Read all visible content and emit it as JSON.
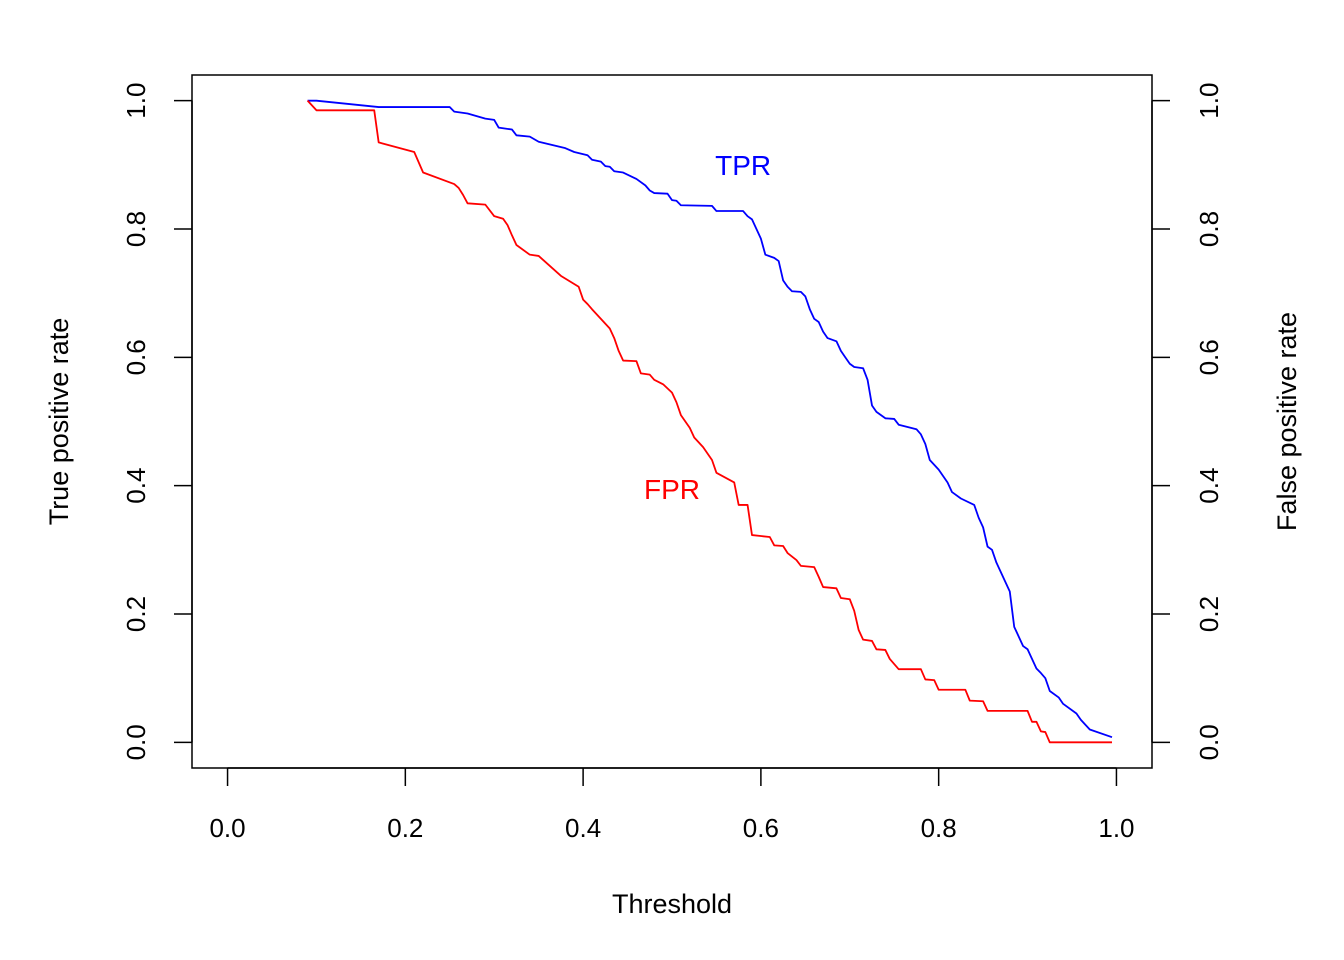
{
  "chart_data": {
    "type": "line",
    "xlabel": "Threshold",
    "ylabel": "True positive rate",
    "ylabel_right": "False positive rate",
    "xlim": [
      -0.04,
      1.04
    ],
    "ylim": [
      -0.04,
      1.04
    ],
    "x_ticks": [
      0.0,
      0.2,
      0.4,
      0.6,
      0.8,
      1.0
    ],
    "x_tick_labels": [
      "0.0",
      "0.2",
      "0.4",
      "0.6",
      "0.8",
      "1.0"
    ],
    "y_ticks": [
      0.0,
      0.2,
      0.4,
      0.6,
      0.8,
      1.0
    ],
    "y_tick_labels": [
      "0.0",
      "0.2",
      "0.4",
      "0.6",
      "0.8",
      "1.0"
    ],
    "grid": false,
    "legend": "none",
    "series": [
      {
        "name": "TPR",
        "color": "#0000ff",
        "label_at": [
          0.58,
          0.9
        ],
        "points": [
          [
            0.09,
            1.0
          ],
          [
            0.1,
            1.0
          ],
          [
            0.17,
            0.99
          ],
          [
            0.25,
            0.99
          ],
          [
            0.255,
            0.983
          ],
          [
            0.27,
            0.98
          ],
          [
            0.29,
            0.972
          ],
          [
            0.3,
            0.97
          ],
          [
            0.305,
            0.958
          ],
          [
            0.32,
            0.955
          ],
          [
            0.325,
            0.946
          ],
          [
            0.34,
            0.944
          ],
          [
            0.35,
            0.936
          ],
          [
            0.38,
            0.926
          ],
          [
            0.39,
            0.92
          ],
          [
            0.405,
            0.915
          ],
          [
            0.41,
            0.908
          ],
          [
            0.42,
            0.905
          ],
          [
            0.425,
            0.898
          ],
          [
            0.43,
            0.897
          ],
          [
            0.435,
            0.89
          ],
          [
            0.445,
            0.888
          ],
          [
            0.46,
            0.878
          ],
          [
            0.47,
            0.868
          ],
          [
            0.475,
            0.86
          ],
          [
            0.48,
            0.856
          ],
          [
            0.495,
            0.855
          ],
          [
            0.5,
            0.845
          ],
          [
            0.505,
            0.844
          ],
          [
            0.51,
            0.837
          ],
          [
            0.545,
            0.836
          ],
          [
            0.55,
            0.828
          ],
          [
            0.58,
            0.828
          ],
          [
            0.585,
            0.82
          ],
          [
            0.59,
            0.815
          ],
          [
            0.595,
            0.8
          ],
          [
            0.6,
            0.785
          ],
          [
            0.605,
            0.76
          ],
          [
            0.615,
            0.755
          ],
          [
            0.62,
            0.75
          ],
          [
            0.625,
            0.72
          ],
          [
            0.63,
            0.71
          ],
          [
            0.635,
            0.703
          ],
          [
            0.645,
            0.702
          ],
          [
            0.65,
            0.695
          ],
          [
            0.655,
            0.675
          ],
          [
            0.66,
            0.66
          ],
          [
            0.665,
            0.655
          ],
          [
            0.67,
            0.64
          ],
          [
            0.675,
            0.63
          ],
          [
            0.685,
            0.625
          ],
          [
            0.69,
            0.61
          ],
          [
            0.695,
            0.6
          ],
          [
            0.7,
            0.59
          ],
          [
            0.705,
            0.585
          ],
          [
            0.715,
            0.583
          ],
          [
            0.72,
            0.565
          ],
          [
            0.725,
            0.525
          ],
          [
            0.73,
            0.515
          ],
          [
            0.74,
            0.505
          ],
          [
            0.75,
            0.504
          ],
          [
            0.755,
            0.495
          ],
          [
            0.775,
            0.488
          ],
          [
            0.78,
            0.48
          ],
          [
            0.785,
            0.465
          ],
          [
            0.79,
            0.44
          ],
          [
            0.8,
            0.425
          ],
          [
            0.81,
            0.405
          ],
          [
            0.815,
            0.39
          ],
          [
            0.825,
            0.38
          ],
          [
            0.84,
            0.37
          ],
          [
            0.845,
            0.35
          ],
          [
            0.85,
            0.335
          ],
          [
            0.855,
            0.305
          ],
          [
            0.86,
            0.3
          ],
          [
            0.865,
            0.28
          ],
          [
            0.87,
            0.265
          ],
          [
            0.875,
            0.25
          ],
          [
            0.88,
            0.235
          ],
          [
            0.885,
            0.18
          ],
          [
            0.89,
            0.165
          ],
          [
            0.895,
            0.15
          ],
          [
            0.9,
            0.145
          ],
          [
            0.905,
            0.13
          ],
          [
            0.91,
            0.115
          ],
          [
            0.915,
            0.108
          ],
          [
            0.92,
            0.1
          ],
          [
            0.925,
            0.08
          ],
          [
            0.935,
            0.07
          ],
          [
            0.94,
            0.06
          ],
          [
            0.955,
            0.045
          ],
          [
            0.96,
            0.035
          ],
          [
            0.97,
            0.02
          ],
          [
            0.995,
            0.008
          ]
        ]
      },
      {
        "name": "FPR",
        "color": "#ff0000",
        "label_at": [
          0.5,
          0.395
        ],
        "points": [
          [
            0.09,
            1.0
          ],
          [
            0.1,
            0.985
          ],
          [
            0.165,
            0.985
          ],
          [
            0.17,
            0.935
          ],
          [
            0.21,
            0.92
          ],
          [
            0.22,
            0.888
          ],
          [
            0.255,
            0.87
          ],
          [
            0.26,
            0.864
          ],
          [
            0.265,
            0.853
          ],
          [
            0.27,
            0.84
          ],
          [
            0.29,
            0.838
          ],
          [
            0.3,
            0.82
          ],
          [
            0.31,
            0.816
          ],
          [
            0.315,
            0.806
          ],
          [
            0.32,
            0.79
          ],
          [
            0.325,
            0.775
          ],
          [
            0.34,
            0.76
          ],
          [
            0.35,
            0.758
          ],
          [
            0.375,
            0.727
          ],
          [
            0.395,
            0.71
          ],
          [
            0.4,
            0.69
          ],
          [
            0.405,
            0.683
          ],
          [
            0.41,
            0.675
          ],
          [
            0.42,
            0.66
          ],
          [
            0.43,
            0.645
          ],
          [
            0.435,
            0.63
          ],
          [
            0.44,
            0.61
          ],
          [
            0.445,
            0.595
          ],
          [
            0.46,
            0.594
          ],
          [
            0.465,
            0.575
          ],
          [
            0.475,
            0.573
          ],
          [
            0.48,
            0.565
          ],
          [
            0.49,
            0.558
          ],
          [
            0.5,
            0.545
          ],
          [
            0.505,
            0.53
          ],
          [
            0.51,
            0.51
          ],
          [
            0.52,
            0.49
          ],
          [
            0.525,
            0.475
          ],
          [
            0.535,
            0.46
          ],
          [
            0.545,
            0.44
          ],
          [
            0.55,
            0.42
          ],
          [
            0.57,
            0.405
          ],
          [
            0.575,
            0.37
          ],
          [
            0.585,
            0.37
          ],
          [
            0.59,
            0.323
          ],
          [
            0.61,
            0.32
          ],
          [
            0.615,
            0.307
          ],
          [
            0.625,
            0.306
          ],
          [
            0.63,
            0.295
          ],
          [
            0.64,
            0.284
          ],
          [
            0.645,
            0.275
          ],
          [
            0.66,
            0.273
          ],
          [
            0.665,
            0.258
          ],
          [
            0.67,
            0.242
          ],
          [
            0.685,
            0.24
          ],
          [
            0.69,
            0.225
          ],
          [
            0.7,
            0.223
          ],
          [
            0.705,
            0.205
          ],
          [
            0.71,
            0.175
          ],
          [
            0.715,
            0.16
          ],
          [
            0.725,
            0.158
          ],
          [
            0.73,
            0.145
          ],
          [
            0.74,
            0.144
          ],
          [
            0.745,
            0.13
          ],
          [
            0.75,
            0.122
          ],
          [
            0.755,
            0.114
          ],
          [
            0.78,
            0.114
          ],
          [
            0.785,
            0.098
          ],
          [
            0.795,
            0.097
          ],
          [
            0.8,
            0.082
          ],
          [
            0.83,
            0.082
          ],
          [
            0.835,
            0.065
          ],
          [
            0.85,
            0.064
          ],
          [
            0.855,
            0.049
          ],
          [
            0.9,
            0.049
          ],
          [
            0.905,
            0.032
          ],
          [
            0.91,
            0.032
          ],
          [
            0.915,
            0.017
          ],
          [
            0.92,
            0.016
          ],
          [
            0.925,
            0.0
          ],
          [
            0.995,
            0.0
          ]
        ]
      }
    ]
  }
}
